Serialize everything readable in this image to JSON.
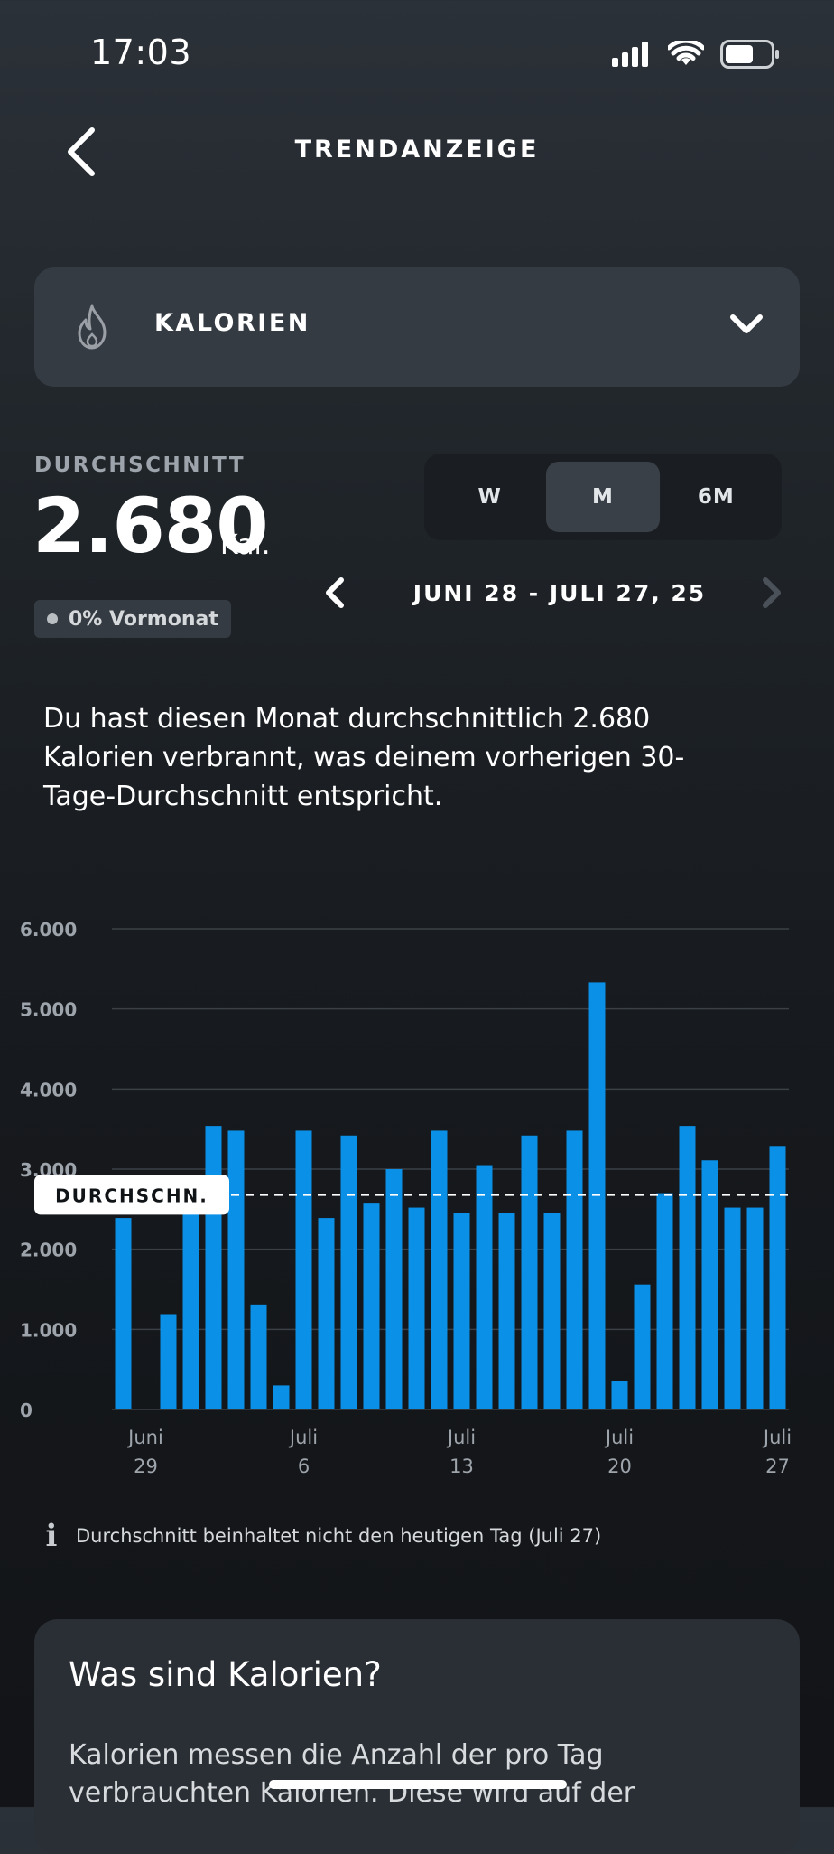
{
  "status_bar": {
    "time": "17:03",
    "icons": [
      "cellular-signal-icon",
      "wifi-icon",
      "battery-icon"
    ]
  },
  "header": {
    "title": "TRENDANZEIGE",
    "back_icon": "chevron-left-icon"
  },
  "metric_select": {
    "label": "KALORIEN",
    "icon": "flame-icon",
    "dropdown_icon": "chevron-down-icon"
  },
  "summary": {
    "average_label": "DURCHSCHNITT",
    "average_value": "2.680",
    "unit": "Kal.",
    "comparison": "0% Vormonat"
  },
  "range_tabs": [
    {
      "label": "W",
      "active": false
    },
    {
      "label": "M",
      "active": true
    },
    {
      "label": "6M",
      "active": false
    }
  ],
  "date_range": {
    "label": "JUNI 28 - JULI 27, 25"
  },
  "description": "Du hast diesen Monat durchschnittlich 2.680 Kalorien verbrannt, was deinem vorherigen 30-Tage-Durchschnitt entspricht.",
  "chart_data": {
    "type": "bar",
    "y_ticks": [
      "6.000",
      "5.000",
      "4.000",
      "3.000",
      "2.000",
      "1.000",
      "0"
    ],
    "ylim": [
      0,
      6000
    ],
    "x_ticks": [
      {
        "line1": "Juni",
        "line2": "29",
        "index": 1
      },
      {
        "line1": "Juli",
        "line2": "6",
        "index": 8
      },
      {
        "line1": "Juli",
        "line2": "13",
        "index": 15
      },
      {
        "line1": "Juli",
        "line2": "20",
        "index": 22
      },
      {
        "line1": "Juli",
        "line2": "27",
        "index": 29
      }
    ],
    "values": [
      2390,
      0,
      1190,
      2580,
      3540,
      3480,
      1310,
      300,
      3480,
      2390,
      3420,
      2570,
      3000,
      2520,
      3480,
      2450,
      3050,
      2450,
      3420,
      2450,
      3480,
      5330,
      350,
      1560,
      2700,
      3540,
      3110,
      2520,
      2520,
      3290
    ],
    "average": 2680,
    "average_label": "DURCHSCHN.",
    "bar_color": "#0a90e6",
    "grid": true
  },
  "note": "Durchschnitt beinhaltet nicht den heutigen Tag (Juli 27)",
  "info_card": {
    "title": "Was sind Kalorien?",
    "body": "Kalorien messen die Anzahl der pro Tag verbrauchten Kalorien. Diese wird auf der"
  }
}
